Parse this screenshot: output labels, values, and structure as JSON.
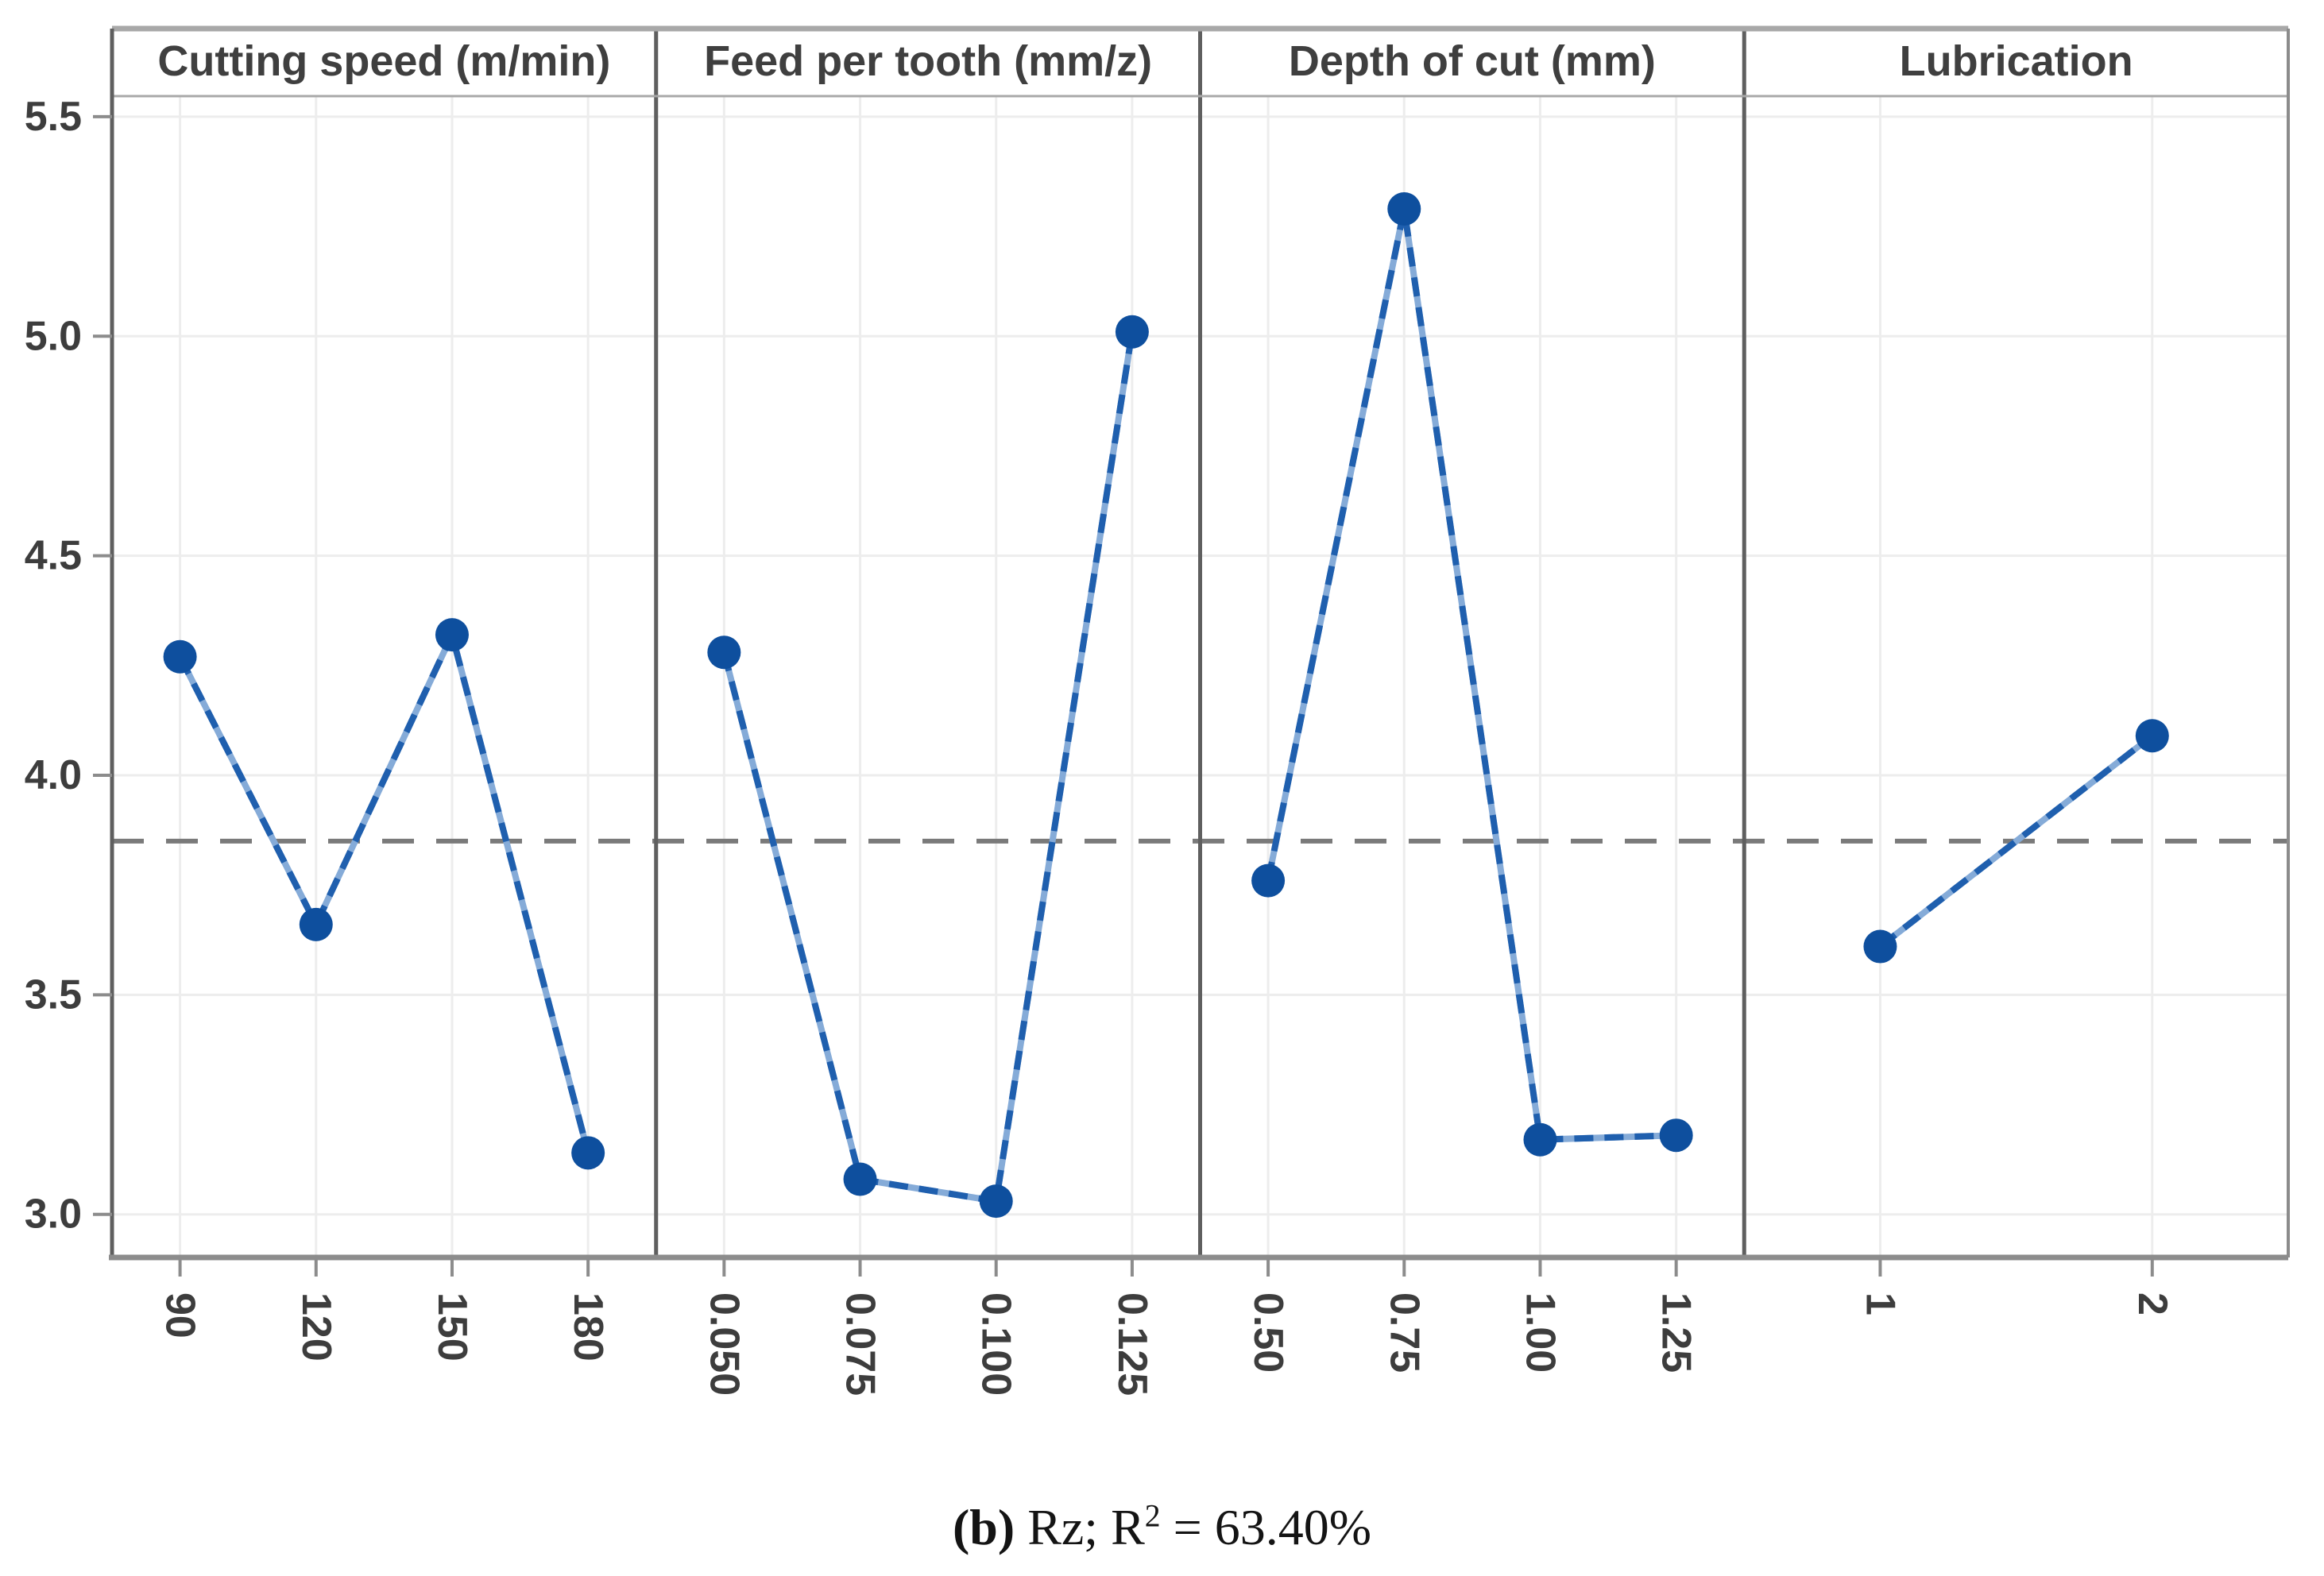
{
  "caption": {
    "label": "(b)",
    "main": " Rz; R",
    "sup": "2",
    "rest": " = 63.40%"
  },
  "chart_data": {
    "type": "line",
    "title": "",
    "xlabel": "",
    "ylabel": "",
    "ylim": [
      2.9,
      5.55
    ],
    "ytick_values": [
      3.0,
      3.5,
      4.0,
      4.5,
      5.0,
      5.5
    ],
    "ytick_labels": [
      "3.0",
      "3.5",
      "4.0",
      "4.5",
      "5.0",
      "5.5"
    ],
    "grid": true,
    "legend_position": "none",
    "marker": "circle",
    "mean_line": 3.85,
    "panels": [
      {
        "title": "Cutting speed (m/min)",
        "categories": [
          "90",
          "120",
          "150",
          "180"
        ],
        "values": [
          4.27,
          3.66,
          4.32,
          3.14
        ]
      },
      {
        "title": "Feed per tooth (mm/z)",
        "categories": [
          "0.050",
          "0.075",
          "0.100",
          "0.125"
        ],
        "values": [
          4.28,
          3.08,
          3.03,
          5.01
        ]
      },
      {
        "title": "Depth of cut (mm)",
        "categories": [
          "0.50",
          "0.75",
          "1.00",
          "1.25"
        ],
        "values": [
          3.76,
          5.29,
          3.17,
          3.18
        ]
      },
      {
        "title": "Lubrication",
        "categories": [
          "1",
          "2"
        ],
        "values": [
          3.61,
          4.09
        ]
      }
    ],
    "colors": {
      "line": "#1f5fae",
      "line_gap": "#85abd8",
      "marker": "#0e4f9e",
      "mean_dash": "#7a7a7a",
      "grid": "#ededed",
      "frame_light": "#a8a8a8",
      "frame": "#8c8c8c",
      "separator": "#5f5f5f",
      "tick_text": "#3d3d3d",
      "title_text": "#3f3f3f"
    }
  }
}
